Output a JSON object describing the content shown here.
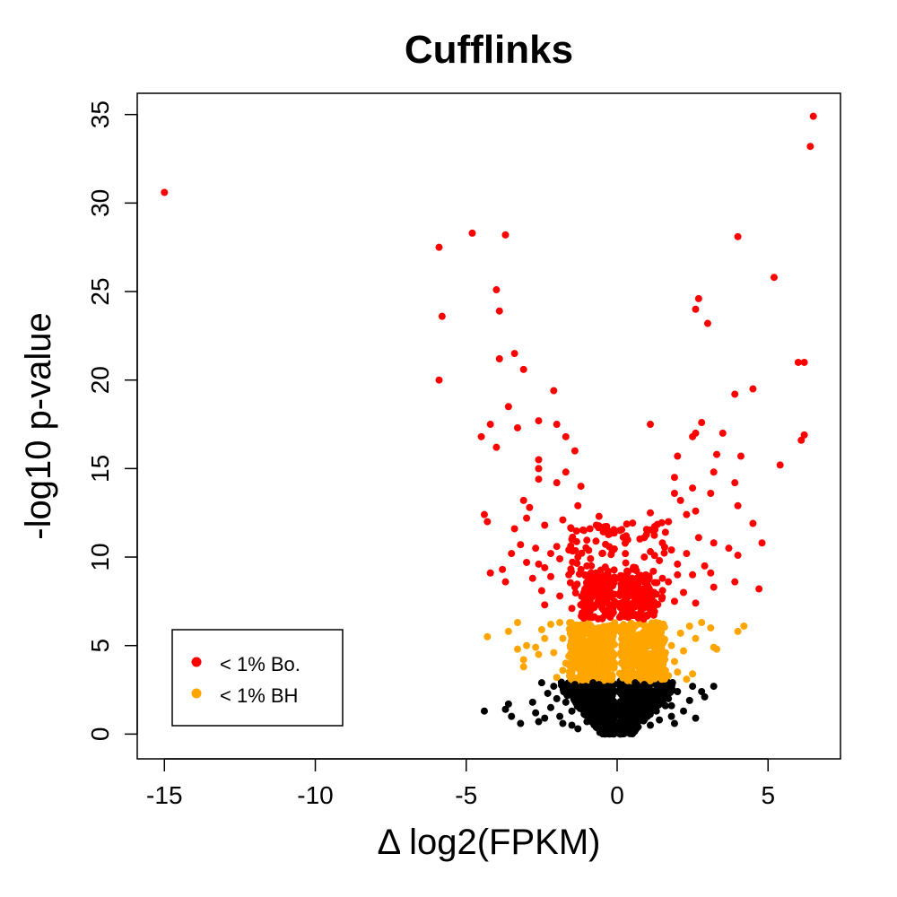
{
  "colors": {
    "bonferroni": "#ff0000",
    "bh": "#ffa500",
    "not_significant": "#000000"
  },
  "chart_data": {
    "type": "scatter",
    "title": "Cufflinks",
    "xlabel": "Δ log2(FPKM)",
    "ylabel": "-log10 p-value",
    "xlim": [
      -15.9,
      7.4
    ],
    "ylim": [
      -1.4,
      36.2
    ],
    "xticks": [
      -15,
      -10,
      -5,
      0,
      5
    ],
    "yticks": [
      0,
      5,
      10,
      15,
      20,
      25,
      30,
      35
    ],
    "grid": false,
    "legend_position": "bottom-left",
    "legend": [
      {
        "label": "< 1% Bo.",
        "color": "#ff0000"
      },
      {
        "label": "< 1% BH",
        "color": "#ffa500"
      }
    ],
    "series": [
      {
        "name": "< 1% Bo.",
        "color": "#ff0000",
        "points": [
          [
            -15.0,
            30.6
          ],
          [
            -5.9,
            27.5
          ],
          [
            -4.8,
            28.3
          ],
          [
            -3.7,
            28.2
          ],
          [
            -5.8,
            23.6
          ],
          [
            -5.9,
            20.0
          ],
          [
            -4.0,
            25.1
          ],
          [
            -3.9,
            23.9
          ],
          [
            -3.9,
            21.2
          ],
          [
            -3.4,
            21.5
          ],
          [
            -3.1,
            20.6
          ],
          [
            -2.1,
            19.4
          ],
          [
            -3.6,
            18.5
          ],
          [
            -4.2,
            17.5
          ],
          [
            -4.5,
            16.8
          ],
          [
            -4.0,
            16.2
          ],
          [
            -3.3,
            17.3
          ],
          [
            -2.6,
            17.7
          ],
          [
            -2.0,
            17.5
          ],
          [
            -1.7,
            16.8
          ],
          [
            -1.4,
            16.0
          ],
          [
            -2.6,
            15.5
          ],
          [
            -2.6,
            15.0
          ],
          [
            -1.7,
            14.8
          ],
          [
            -2.6,
            14.4
          ],
          [
            -2.0,
            14.2
          ],
          [
            -1.2,
            14.0
          ],
          [
            -3.1,
            13.2
          ],
          [
            -2.9,
            12.8
          ],
          [
            -4.4,
            12.4
          ],
          [
            -4.3,
            12.0
          ],
          [
            -3.4,
            11.6
          ],
          [
            -3.0,
            12.2
          ],
          [
            -2.4,
            11.8
          ],
          [
            -1.1,
            11.5
          ],
          [
            -3.2,
            10.7
          ],
          [
            -2.7,
            10.5
          ],
          [
            -2.2,
            10.2
          ],
          [
            -1.6,
            10.4
          ],
          [
            -3.0,
            9.7
          ],
          [
            -2.4,
            9.4
          ],
          [
            -1.9,
            9.9
          ],
          [
            -1.3,
            10.0
          ],
          [
            -4.2,
            9.1
          ],
          [
            -3.8,
            9.3
          ],
          [
            -3.7,
            8.6
          ],
          [
            -2.8,
            8.8
          ],
          [
            -2.2,
            8.9
          ],
          [
            -1.6,
            9.0
          ],
          [
            -1.0,
            9.5
          ],
          [
            -2.5,
            8.1
          ],
          [
            -1.9,
            7.8
          ],
          [
            -1.4,
            8.3
          ],
          [
            -1.1,
            8.0
          ],
          [
            -0.9,
            7.5
          ],
          [
            -0.6,
            7.3
          ],
          [
            -2.4,
            7.3
          ],
          [
            -1.5,
            7.1
          ],
          [
            -0.8,
            8.6
          ],
          [
            -0.4,
            7.9
          ],
          [
            -0.3,
            9.2
          ],
          [
            -0.5,
            10.2
          ],
          [
            -0.7,
            10.9
          ],
          [
            -0.9,
            11.6
          ],
          [
            -0.6,
            12.3
          ],
          [
            -0.2,
            7.0
          ],
          [
            -1.2,
            9.3
          ],
          [
            -2.0,
            10.6
          ],
          [
            -1.8,
            12.1
          ],
          [
            -1.3,
            12.9
          ],
          [
            -0.7,
            9.1
          ],
          [
            -1.0,
            8.4
          ],
          [
            -2.6,
            9.6
          ],
          [
            -3.5,
            10.2
          ],
          [
            -1.5,
            11.0
          ],
          [
            6.5,
            34.9
          ],
          [
            6.4,
            33.2
          ],
          [
            4.0,
            28.1
          ],
          [
            5.2,
            25.8
          ],
          [
            2.7,
            24.6
          ],
          [
            2.6,
            24.0
          ],
          [
            3.0,
            23.2
          ],
          [
            6.0,
            21.0
          ],
          [
            6.2,
            21.0
          ],
          [
            4.5,
            19.5
          ],
          [
            3.9,
            19.2
          ],
          [
            1.1,
            17.5
          ],
          [
            2.8,
            17.6
          ],
          [
            2.5,
            16.8
          ],
          [
            2.6,
            17.0
          ],
          [
            3.5,
            17.0
          ],
          [
            6.2,
            16.9
          ],
          [
            6.1,
            16.6
          ],
          [
            2.0,
            15.7
          ],
          [
            3.3,
            15.8
          ],
          [
            4.1,
            15.7
          ],
          [
            5.4,
            15.2
          ],
          [
            3.2,
            14.8
          ],
          [
            1.9,
            14.5
          ],
          [
            3.9,
            14.2
          ],
          [
            2.5,
            13.9
          ],
          [
            2.1,
            13.2
          ],
          [
            3.1,
            13.6
          ],
          [
            1.9,
            13.6
          ],
          [
            2.6,
            12.6
          ],
          [
            4.0,
            12.9
          ],
          [
            1.1,
            12.5
          ],
          [
            1.7,
            12.0
          ],
          [
            2.3,
            12.4
          ],
          [
            4.5,
            11.9
          ],
          [
            1.6,
            11.4
          ],
          [
            2.7,
            11.1
          ],
          [
            0.9,
            11.1
          ],
          [
            3.2,
            10.8
          ],
          [
            4.8,
            10.8
          ],
          [
            3.7,
            10.5
          ],
          [
            1.8,
            10.4
          ],
          [
            2.3,
            10.2
          ],
          [
            0.9,
            10.0
          ],
          [
            4.0,
            10.1
          ],
          [
            1.4,
            9.8
          ],
          [
            2.0,
            9.6
          ],
          [
            2.9,
            9.5
          ],
          [
            3.1,
            9.1
          ],
          [
            0.6,
            9.4
          ],
          [
            1.2,
            9.2
          ],
          [
            2.5,
            9.0
          ],
          [
            3.9,
            8.6
          ],
          [
            1.7,
            8.6
          ],
          [
            0.7,
            8.5
          ],
          [
            3.2,
            8.3
          ],
          [
            4.7,
            8.2
          ],
          [
            2.2,
            8.0
          ],
          [
            1.3,
            7.9
          ],
          [
            0.4,
            7.8
          ],
          [
            1.9,
            7.5
          ],
          [
            2.6,
            7.4
          ],
          [
            0.6,
            7.2
          ],
          [
            1.1,
            7.0
          ],
          [
            0.3,
            7.0
          ],
          [
            1.5,
            8.8
          ],
          [
            0.8,
            7.6
          ],
          [
            2.0,
            9.0
          ],
          [
            1.5,
            10.8
          ],
          [
            0.5,
            8.2
          ]
        ]
      },
      {
        "name": "< 1% BH",
        "color": "#ffa500",
        "points": [
          [
            -4.3,
            5.5
          ],
          [
            -3.6,
            5.8
          ],
          [
            -3.3,
            6.3
          ],
          [
            -3.0,
            5.0
          ],
          [
            -2.7,
            4.9
          ],
          [
            -3.3,
            4.8
          ],
          [
            -2.5,
            5.9
          ],
          [
            -2.2,
            6.2
          ],
          [
            -1.9,
            6.3
          ],
          [
            -3.1,
            4.2
          ],
          [
            -3.1,
            3.8
          ],
          [
            -2.6,
            4.5
          ],
          [
            -2.1,
            4.6
          ],
          [
            -1.8,
            5.4
          ],
          [
            -1.7,
            4.0
          ],
          [
            -1.5,
            3.5
          ],
          [
            -1.2,
            3.3
          ],
          [
            -2.0,
            3.2
          ],
          [
            -1.8,
            3.6
          ],
          [
            -2.4,
            5.4
          ],
          [
            -1.4,
            6.0
          ],
          [
            -1.0,
            5.8
          ],
          [
            -0.6,
            6.0
          ],
          [
            -0.3,
            5.3
          ],
          [
            -0.2,
            4.4
          ],
          [
            -0.4,
            3.2
          ],
          [
            -0.8,
            3.6
          ],
          [
            -1.2,
            4.2
          ],
          [
            -0.9,
            4.8
          ],
          [
            -0.5,
            5.6
          ],
          [
            -1.1,
            5.3
          ],
          [
            -1.3,
            4.7
          ],
          [
            -1.6,
            4.4
          ],
          [
            -0.7,
            3.3
          ],
          [
            -0.3,
            3.8
          ],
          [
            0.3,
            5.3
          ],
          [
            0.2,
            4.4
          ],
          [
            0.4,
            3.3
          ],
          [
            0.6,
            6.1
          ],
          [
            0.9,
            5.8
          ],
          [
            1.2,
            5.5
          ],
          [
            1.4,
            6.2
          ],
          [
            1.6,
            4.6
          ],
          [
            1.8,
            5.0
          ],
          [
            2.1,
            5.7
          ],
          [
            2.4,
            6.1
          ],
          [
            2.6,
            5.4
          ],
          [
            2.2,
            4.7
          ],
          [
            1.9,
            4.1
          ],
          [
            1.6,
            3.6
          ],
          [
            1.3,
            3.2
          ],
          [
            0.9,
            3.7
          ],
          [
            0.7,
            4.2
          ],
          [
            2.0,
            3.5
          ],
          [
            2.3,
            3.1
          ],
          [
            2.8,
            6.3
          ],
          [
            3.1,
            6.0
          ],
          [
            3.2,
            4.9
          ],
          [
            3.3,
            4.8
          ],
          [
            4.0,
            5.8
          ],
          [
            4.2,
            6.1
          ],
          [
            1.0,
            4.5
          ],
          [
            0.5,
            4.9
          ],
          [
            1.4,
            3.9
          ],
          [
            0.4,
            3.9
          ],
          [
            1.1,
            5.0
          ],
          [
            0.8,
            5.3
          ],
          [
            0.3,
            3.5
          ],
          [
            1.7,
            3.3
          ],
          [
            2.5,
            3.4
          ]
        ]
      },
      {
        "name": "",
        "color": "#000000",
        "points": [
          [
            -4.4,
            1.3
          ],
          [
            -3.7,
            1.4
          ],
          [
            -3.6,
            1.7
          ],
          [
            -3.5,
            1.0
          ],
          [
            -3.2,
            0.6
          ],
          [
            -2.8,
            1.8
          ],
          [
            -2.7,
            1.2
          ],
          [
            -2.4,
            0.9
          ],
          [
            -2.6,
            0.7
          ],
          [
            -2.3,
            2.3
          ],
          [
            -2.1,
            2.7
          ],
          [
            -2.2,
            1.5
          ],
          [
            -1.9,
            1.0
          ],
          [
            -1.8,
            0.6
          ],
          [
            -2.0,
            2.0
          ],
          [
            -1.6,
            2.5
          ],
          [
            -1.5,
            1.3
          ],
          [
            -1.7,
            1.8
          ],
          [
            -2.5,
            2.9
          ],
          [
            -1.3,
            0.3
          ],
          [
            -1.4,
            2.8
          ],
          [
            -1.2,
            1.6
          ],
          [
            -1.0,
            0.7
          ],
          [
            -0.9,
            2.4
          ],
          [
            -1.1,
            2.0
          ],
          [
            -0.8,
            1.2
          ],
          [
            -0.7,
            0.4
          ],
          [
            -0.6,
            2.8
          ],
          [
            -0.5,
            1.8
          ],
          [
            -0.4,
            0.9
          ],
          [
            -0.3,
            2.2
          ],
          [
            -0.2,
            0.5
          ],
          [
            -0.1,
            1.4
          ],
          [
            0.0,
            0.1
          ],
          [
            0.1,
            2.6
          ],
          [
            0.2,
            1.1
          ],
          [
            0.3,
            0.3
          ],
          [
            0.4,
            2.0
          ],
          [
            0.5,
            1.5
          ],
          [
            0.6,
            0.7
          ],
          [
            0.7,
            2.4
          ],
          [
            0.8,
            1.0
          ],
          [
            0.9,
            2.8
          ],
          [
            1.0,
            1.8
          ],
          [
            1.1,
            0.5
          ],
          [
            1.2,
            2.2
          ],
          [
            1.3,
            1.3
          ],
          [
            1.4,
            0.8
          ],
          [
            1.5,
            2.6
          ],
          [
            1.6,
            1.6
          ],
          [
            1.7,
            2.0
          ],
          [
            1.8,
            1.0
          ],
          [
            1.9,
            0.6
          ],
          [
            2.0,
            2.4
          ],
          [
            2.2,
            1.3
          ],
          [
            2.4,
            1.9
          ],
          [
            2.6,
            0.9
          ],
          [
            2.5,
            2.7
          ],
          [
            2.8,
            2.4
          ],
          [
            2.9,
            2.1
          ],
          [
            1.8,
            1.6
          ],
          [
            3.2,
            2.7
          ],
          [
            -0.8,
            2.9
          ],
          [
            0.6,
            2.9
          ],
          [
            -1.5,
            0.5
          ]
        ]
      }
    ]
  }
}
